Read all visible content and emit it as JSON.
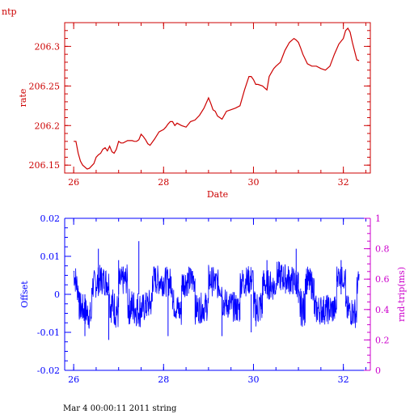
{
  "title": "ntp",
  "footer": "Mar  4 00:00:11 2011 string",
  "colors": {
    "top": "#cc0000",
    "offset": "#0000ff",
    "rtt": "#cc00cc",
    "axis": "#000000"
  },
  "chart_data": [
    {
      "type": "line",
      "title": "ntp",
      "xlabel": "Date",
      "ylabel": "rate",
      "xlim": [
        25.8,
        32.6
      ],
      "ylim": [
        206.14,
        206.33
      ],
      "xticks": [
        "26",
        "28",
        "30",
        "32"
      ],
      "yticks": [
        "206.15",
        "206.2",
        "206.25",
        "206.3"
      ],
      "series": [
        {
          "x": [
            26.0,
            26.05,
            26.1,
            26.15,
            26.2,
            26.3,
            26.35,
            26.45,
            26.5,
            26.55,
            26.6,
            26.65,
            26.7,
            26.75,
            26.8,
            26.85,
            26.9,
            26.95,
            27.0,
            27.05,
            27.1,
            27.2,
            27.3,
            27.35,
            27.4,
            27.45,
            27.5,
            27.55,
            27.6,
            27.65,
            27.7,
            27.8,
            27.9,
            28.0,
            28.05,
            28.1,
            28.15,
            28.2,
            28.25,
            28.3,
            28.4,
            28.5,
            28.6,
            28.7,
            28.8,
            28.9,
            29.0,
            29.05,
            29.1,
            29.15,
            29.2,
            29.3,
            29.4,
            29.5,
            29.6,
            29.7,
            29.8,
            29.9,
            29.95,
            30.0,
            30.05,
            30.1,
            30.2,
            30.3,
            30.35,
            30.4,
            30.45,
            30.5,
            30.6,
            30.7,
            30.8,
            30.9,
            30.95,
            31.0,
            31.05,
            31.1,
            31.2,
            31.3,
            31.4,
            31.5,
            31.6,
            31.7,
            31.8,
            31.9,
            32.0,
            32.05,
            32.1,
            32.15,
            32.2,
            32.3,
            32.35
          ],
          "y": [
            206.18,
            206.18,
            206.165,
            206.155,
            206.15,
            206.145,
            206.146,
            206.152,
            206.16,
            206.163,
            206.165,
            206.17,
            206.172,
            206.168,
            206.174,
            206.167,
            206.165,
            206.17,
            206.18,
            206.178,
            206.178,
            206.181,
            206.181,
            206.18,
            206.18,
            206.182,
            206.189,
            206.186,
            206.182,
            206.177,
            206.175,
            206.183,
            206.192,
            206.195,
            206.198,
            206.202,
            206.205,
            206.205,
            206.2,
            206.203,
            206.2,
            206.198,
            206.205,
            206.207,
            206.213,
            206.222,
            206.235,
            206.228,
            206.22,
            206.218,
            206.212,
            206.208,
            206.218,
            206.22,
            206.222,
            206.225,
            206.245,
            206.262,
            206.262,
            206.258,
            206.252,
            206.252,
            206.25,
            206.245,
            206.262,
            206.267,
            206.272,
            206.275,
            206.28,
            206.295,
            206.305,
            206.31,
            206.308,
            206.305,
            206.298,
            206.29,
            206.278,
            206.275,
            206.275,
            206.272,
            206.27,
            206.275,
            206.29,
            206.303,
            206.31,
            206.32,
            206.323,
            206.318,
            206.305,
            206.283,
            206.282
          ]
        }
      ]
    },
    {
      "type": "line",
      "xlabel": "",
      "ylabel": "Offset",
      "y2label": "rnd-trip(ms)",
      "xlim": [
        25.8,
        32.6
      ],
      "ylim": [
        -0.02,
        0.02
      ],
      "y2lim": [
        0,
        1
      ],
      "xticks": [
        "26",
        "28",
        "30",
        "32"
      ],
      "yticks": [
        "-0.02",
        "-0.01",
        "0",
        "0.01",
        "0.02"
      ],
      "y2ticks": [
        "0",
        "0.2",
        "0.4",
        "0.6",
        "0.8",
        "1"
      ],
      "series": [
        {
          "name": "Offset",
          "segments": [
            {
              "x": [
                26.0,
                26.12
              ],
              "y": [
                0.006,
                0.0
              ],
              "amp": 0.004
            },
            {
              "x": [
                26.12,
                26.4
              ],
              "y": [
                -0.003,
                -0.006
              ],
              "amp": 0.004
            },
            {
              "x": [
                26.4,
                26.6
              ],
              "y": [
                0.002,
                0.004
              ],
              "amp": 0.004
            },
            {
              "x": [
                26.6,
                26.8
              ],
              "y": [
                0.004,
                0.003
              ],
              "amp": 0.004
            },
            {
              "x": [
                26.8,
                27.0
              ],
              "y": [
                -0.002,
                -0.005
              ],
              "amp": 0.005
            },
            {
              "x": [
                27.0,
                27.2
              ],
              "y": [
                0.003,
                0.004
              ],
              "amp": 0.004
            },
            {
              "x": [
                27.2,
                27.5
              ],
              "y": [
                -0.003,
                -0.004
              ],
              "amp": 0.005
            },
            {
              "x": [
                27.5,
                27.75
              ],
              "y": [
                -0.004,
                -0.002
              ],
              "amp": 0.004
            },
            {
              "x": [
                27.75,
                28.2
              ],
              "y": [
                0.004,
                0.003
              ],
              "amp": 0.004
            },
            {
              "x": [
                28.2,
                28.4
              ],
              "y": [
                -0.002,
                -0.005
              ],
              "amp": 0.004
            },
            {
              "x": [
                28.4,
                28.7
              ],
              "y": [
                0.003,
                0.004
              ],
              "amp": 0.004
            },
            {
              "x": [
                28.7,
                29.0
              ],
              "y": [
                -0.004,
                -0.003
              ],
              "amp": 0.004
            },
            {
              "x": [
                29.0,
                29.3
              ],
              "y": [
                0.004,
                0.002
              ],
              "amp": 0.004
            },
            {
              "x": [
                29.3,
                29.7
              ],
              "y": [
                -0.002,
                -0.004
              ],
              "amp": 0.004
            },
            {
              "x": [
                29.7,
                30.0
              ],
              "y": [
                0.003,
                0.004
              ],
              "amp": 0.004
            },
            {
              "x": [
                30.0,
                30.2
              ],
              "y": [
                -0.004,
                -0.003
              ],
              "amp": 0.005
            },
            {
              "x": [
                30.2,
                30.5
              ],
              "y": [
                0.003,
                0.002
              ],
              "amp": 0.004
            },
            {
              "x": [
                30.5,
                31.0
              ],
              "y": [
                0.005,
                0.003
              ],
              "amp": 0.004
            },
            {
              "x": [
                31.0,
                31.15
              ],
              "y": [
                -0.003,
                -0.004
              ],
              "amp": 0.005
            },
            {
              "x": [
                31.15,
                31.35
              ],
              "y": [
                0.004,
                0.002
              ],
              "amp": 0.004
            },
            {
              "x": [
                31.35,
                31.85
              ],
              "y": [
                -0.004,
                -0.004
              ],
              "amp": 0.004
            },
            {
              "x": [
                31.85,
                32.05
              ],
              "y": [
                0.005,
                0.004
              ],
              "amp": 0.003
            },
            {
              "x": [
                32.05,
                32.3
              ],
              "y": [
                -0.004,
                -0.005
              ],
              "amp": 0.004
            },
            {
              "x": [
                32.3,
                32.35
              ],
              "y": [
                0.002,
                0.004
              ],
              "amp": 0.003
            }
          ],
          "spikes": [
            {
              "x": 27.0,
              "y": 0.009
            },
            {
              "x": 27.45,
              "y": 0.014
            },
            {
              "x": 26.55,
              "y": 0.012
            },
            {
              "x": 30.95,
              "y": 0.012
            },
            {
              "x": 28.1,
              "y": -0.011
            },
            {
              "x": 26.25,
              "y": -0.011
            },
            {
              "x": 26.78,
              "y": -0.012
            },
            {
              "x": 29.3,
              "y": -0.011
            },
            {
              "x": 31.95,
              "y": 0.009
            },
            {
              "x": 30.3,
              "y": 0.009
            },
            {
              "x": 29.95,
              "y": -0.01
            }
          ]
        }
      ]
    }
  ]
}
